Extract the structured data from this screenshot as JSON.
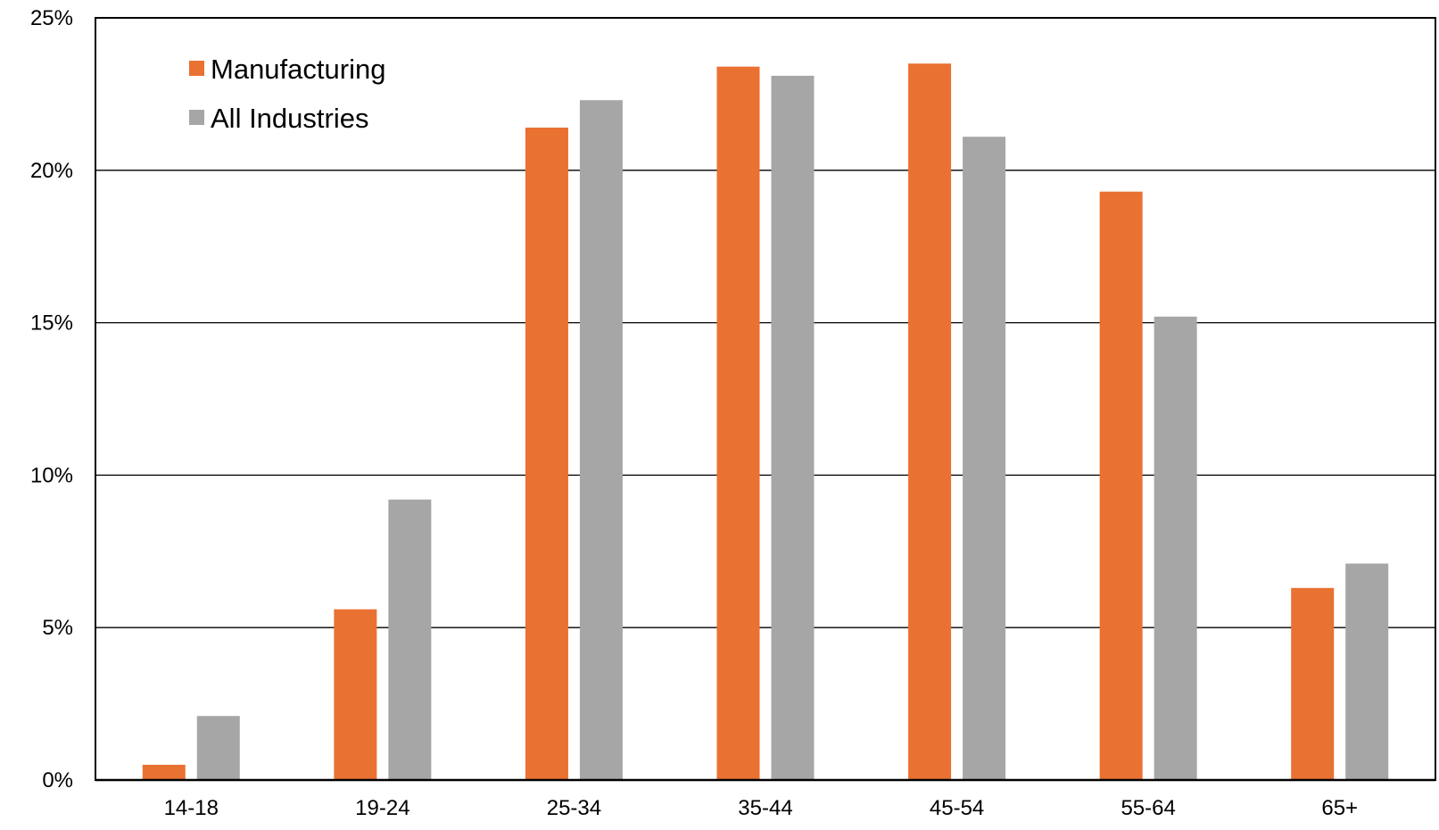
{
  "chart_data": {
    "type": "bar",
    "title": "",
    "xlabel": "",
    "ylabel": "",
    "categories": [
      "14-18",
      "19-24",
      "25-34",
      "35-44",
      "45-54",
      "55-64",
      "65+"
    ],
    "series": [
      {
        "name": "Manufacturing",
        "color": "#E97132",
        "values": [
          0.5,
          5.6,
          21.4,
          23.4,
          23.5,
          19.3,
          6.3
        ]
      },
      {
        "name": "All Industries",
        "color": "#A6A6A6",
        "values": [
          2.1,
          9.2,
          22.3,
          23.1,
          21.1,
          15.2,
          7.1
        ]
      }
    ],
    "ylim": [
      0,
      25
    ],
    "yticks": [
      0,
      5,
      10,
      15,
      20,
      25
    ],
    "ytick_labels": [
      "0%",
      "5%",
      "10%",
      "15%",
      "20%",
      "25%"
    ],
    "grid": true,
    "legend": {
      "placement": "top-left",
      "entries": [
        "Manufacturing",
        "All Industries"
      ]
    }
  }
}
